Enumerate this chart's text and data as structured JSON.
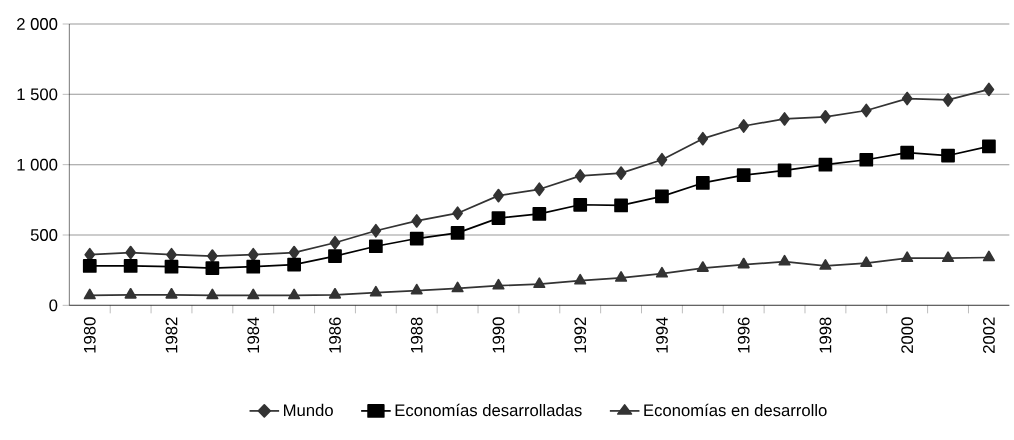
{
  "chart_data": {
    "type": "line",
    "categories": [
      "1980",
      null,
      "1982",
      null,
      "1984",
      null,
      "1986",
      null,
      "1988",
      null,
      "1990",
      null,
      "1992",
      null,
      "1994",
      null,
      "1996",
      null,
      "1998",
      null,
      "2000",
      null,
      "2002"
    ],
    "series": [
      {
        "name": "Mundo",
        "color": "#333333",
        "marker": "diamond",
        "values": [
          360,
          375,
          360,
          350,
          360,
          375,
          445,
          530,
          600,
          655,
          780,
          825,
          920,
          940,
          1035,
          1185,
          1275,
          1325,
          1340,
          1385,
          1470,
          1460,
          1535
        ]
      },
      {
        "name": "Economías desarrolladas",
        "color": "#000000",
        "marker": "square",
        "values": [
          280,
          280,
          275,
          265,
          275,
          290,
          350,
          420,
          475,
          515,
          620,
          650,
          715,
          710,
          775,
          870,
          925,
          960,
          1000,
          1035,
          1085,
          1065,
          1130
        ]
      },
      {
        "name": "Economías en desarrollo",
        "color": "#333333",
        "marker": "triangle",
        "values": [
          70,
          75,
          75,
          70,
          70,
          70,
          75,
          90,
          105,
          120,
          140,
          150,
          175,
          195,
          225,
          265,
          290,
          310,
          280,
          300,
          335,
          335,
          340
        ]
      }
    ],
    "ylim": [
      0,
      2000
    ],
    "yticks": [
      0,
      500,
      {
        "value": 1000,
        "label": "1 000"
      },
      {
        "value": 1500,
        "label": "1 500"
      },
      {
        "value": 2000,
        "label": "2 000"
      }
    ],
    "grid": "y",
    "legend": "bottom",
    "line_style": "solid"
  }
}
